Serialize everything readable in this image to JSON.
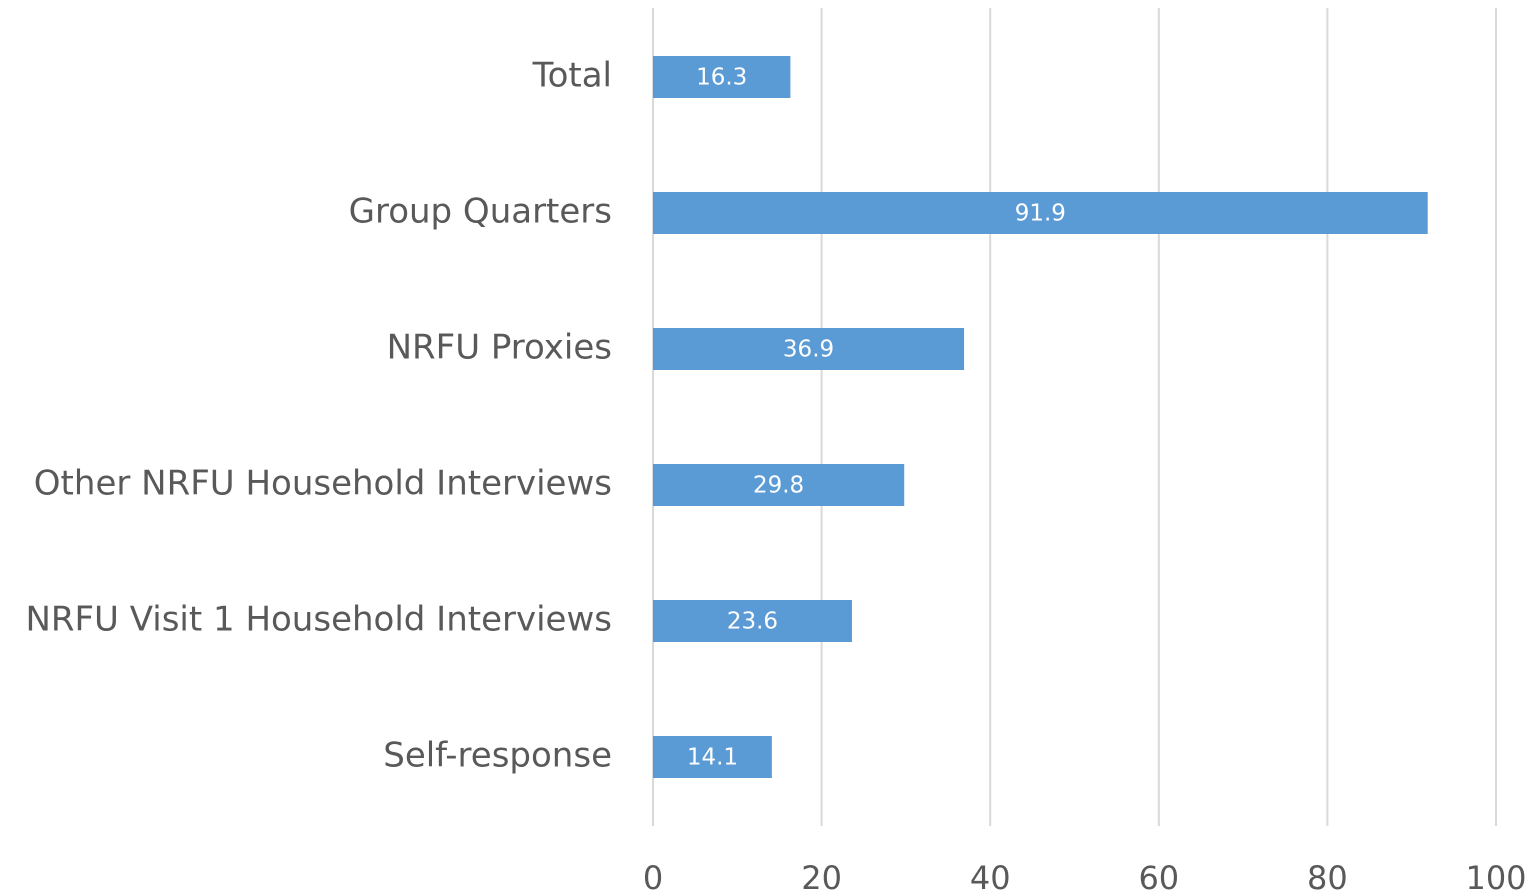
{
  "chart_data": {
    "type": "bar",
    "orientation": "horizontal",
    "categories": [
      "Total",
      "Group Quarters",
      "NRFU Proxies",
      "Other NRFU Household Interviews",
      "NRFU Visit 1 Household Interviews",
      "Self-response"
    ],
    "values": [
      16.3,
      91.9,
      36.9,
      29.8,
      23.6,
      14.1
    ],
    "color": "#5b9bd5",
    "xlim": [
      0,
      100
    ],
    "xticks": [
      0,
      20,
      40,
      60,
      80,
      100
    ],
    "grid": true
  }
}
